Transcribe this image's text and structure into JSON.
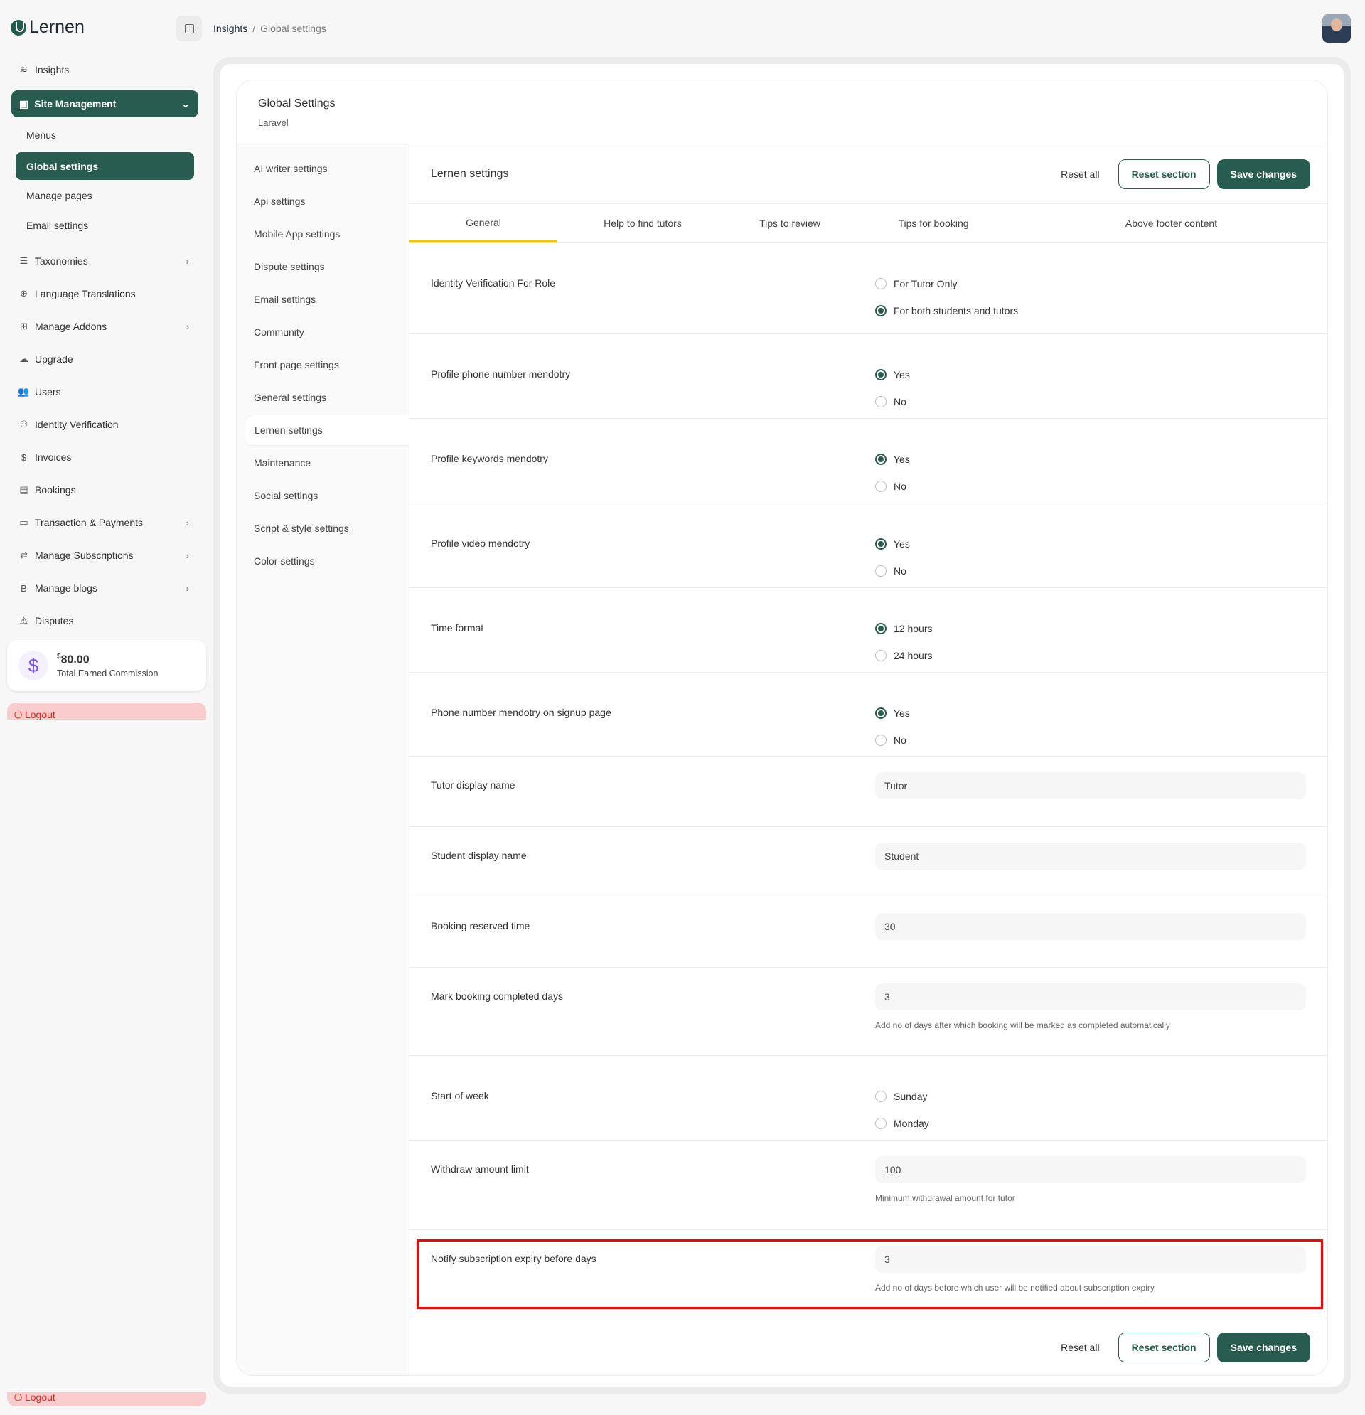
{
  "brand": {
    "name": "Lernen"
  },
  "breadcrumb": [
    "Insights",
    "Global settings"
  ],
  "sidebar": {
    "insights": "Insights",
    "site_management": "Site Management",
    "sub": [
      "Menus",
      "Global settings",
      "Manage pages",
      "Email settings"
    ],
    "items": [
      {
        "label": "Taxonomies",
        "icon": "database-icon",
        "chev": true
      },
      {
        "label": "Language Translations",
        "icon": "globe-icon",
        "chev": false
      },
      {
        "label": "Manage Addons",
        "icon": "addon-icon",
        "chev": true
      },
      {
        "label": "Upgrade",
        "icon": "upload-cloud-icon",
        "chev": false
      },
      {
        "label": "Users",
        "icon": "users-icon",
        "chev": false
      },
      {
        "label": "Identity Verification",
        "icon": "user-check-icon",
        "chev": false
      },
      {
        "label": "Invoices",
        "icon": "dollar-icon",
        "chev": false
      },
      {
        "label": "Bookings",
        "icon": "document-icon",
        "chev": false
      },
      {
        "label": "Transaction & Payments",
        "icon": "card-icon",
        "chev": true
      },
      {
        "label": "Manage Subscriptions",
        "icon": "repeat-icon",
        "chev": true
      },
      {
        "label": "Manage blogs",
        "icon": "blog-icon",
        "chev": true
      },
      {
        "label": "Disputes",
        "icon": "warning-icon",
        "chev": false
      }
    ],
    "commission": {
      "currency": "$",
      "amount": "80.00",
      "label": "Total Earned Commission"
    },
    "logout": "Logout"
  },
  "card": {
    "title": "Global Settings",
    "subtitle": "Laravel"
  },
  "settings_nav": [
    "AI writer settings",
    "Api settings",
    "Mobile App settings",
    "Dispute settings",
    "Email settings",
    "Community",
    "Front page settings",
    "General settings",
    "Lernen settings",
    "Maintenance",
    "Social settings",
    "Script & style settings",
    "Color settings"
  ],
  "panel": {
    "title": "Lernen settings",
    "reset_all": "Reset all",
    "reset_section": "Reset section",
    "save": "Save changes",
    "tabs": [
      "General",
      "Help to find tutors",
      "Tips to review",
      "Tips for booking",
      "Above footer content"
    ],
    "rows": [
      {
        "label": "Identity Verification For Role",
        "type": "radio",
        "options": [
          "For Tutor Only",
          "For both students and tutors"
        ],
        "selected": 1
      },
      {
        "label": "Profile phone number mendotry",
        "type": "radio",
        "options": [
          "Yes",
          "No"
        ],
        "selected": 0
      },
      {
        "label": "Profile keywords mendotry",
        "type": "radio",
        "options": [
          "Yes",
          "No"
        ],
        "selected": 0
      },
      {
        "label": "Profile video mendotry",
        "type": "radio",
        "options": [
          "Yes",
          "No"
        ],
        "selected": 0
      },
      {
        "label": "Time format",
        "type": "radio",
        "options": [
          "12 hours",
          "24 hours"
        ],
        "selected": 0
      },
      {
        "label": "Phone number mendotry on signup page",
        "type": "radio",
        "options": [
          "Yes",
          "No"
        ],
        "selected": 0
      },
      {
        "label": "Tutor display name",
        "type": "input",
        "value": "Tutor"
      },
      {
        "label": "Student display name",
        "type": "input",
        "value": "Student"
      },
      {
        "label": "Booking reserved time",
        "type": "input",
        "value": "30"
      },
      {
        "label": "Mark booking completed days",
        "type": "input",
        "value": "3",
        "hint": "Add no of days after which booking will be marked as completed automatically"
      },
      {
        "label": "Start of week",
        "type": "radio",
        "options": [
          "Sunday",
          "Monday"
        ],
        "selected": -1
      },
      {
        "label": "Withdraw amount limit",
        "type": "input",
        "value": "100",
        "hint": "Minimum withdrawal amount for tutor"
      },
      {
        "label": "Notify subscription expiry before days",
        "type": "input",
        "value": "3",
        "hint": "Add no of days before which user will be notified about subscription expiry",
        "highlighted": true
      }
    ]
  },
  "colors": {
    "primary": "#275c4f",
    "tab_accent": "#f5c400",
    "highlight": "#ff0000",
    "logout_bg": "#f9cdce"
  }
}
